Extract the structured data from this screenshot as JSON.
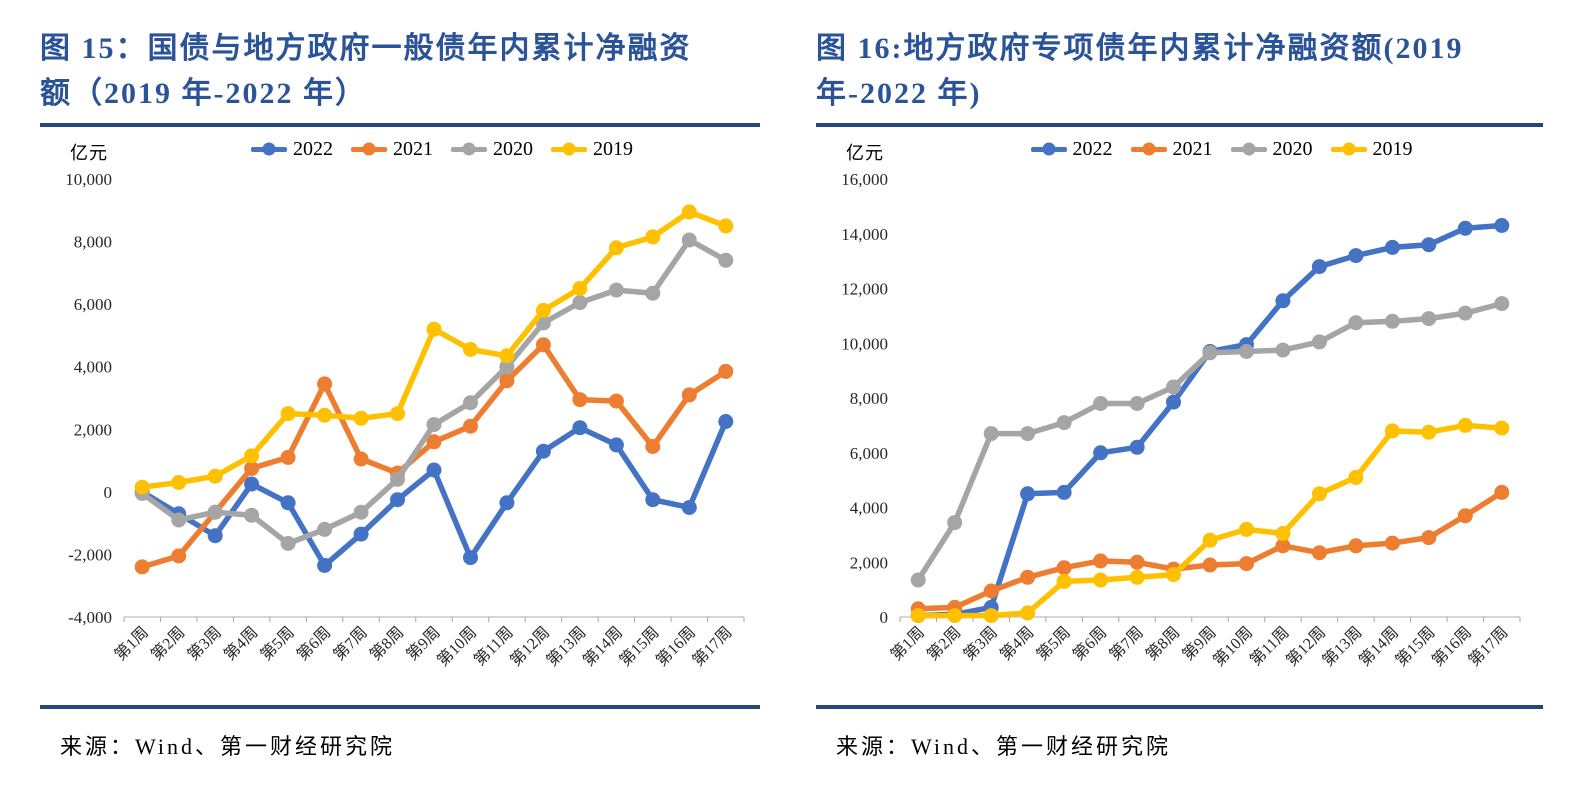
{
  "colors": {
    "title_blue": "#2B5398",
    "rule_navy": "#24477E",
    "axis_gray": "#BFBFBF",
    "series_2022": "#4472C4",
    "series_2021": "#ED7D31",
    "series_2020": "#A5A5A5",
    "series_2019": "#FFC000"
  },
  "panels": [
    {
      "title_lines": [
        "图 15：国债与地方政府一般债年内累计净融资",
        "额（2019 年-2022 年）"
      ],
      "unit": "亿元",
      "source": "来源：Wind、第一财经研究院"
    },
    {
      "title_lines": [
        "图 16:地方政府专项债年内累计净融资额(2019",
        "年-2022 年)"
      ],
      "unit": "亿元",
      "source": "来源：Wind、第一财经研究院"
    }
  ],
  "chart_data": [
    {
      "type": "line",
      "title": "图 15：国债与地方政府一般债年内累计净融资额（2019 年-2022 年）",
      "ylabel": "亿元",
      "xlabel": "",
      "categories": [
        "第1周",
        "第2周",
        "第3周",
        "第4周",
        "第5周",
        "第6周",
        "第7周",
        "第8周",
        "第9周",
        "第10周",
        "第11周",
        "第12周",
        "第13周",
        "第14周",
        "第15周",
        "第16周",
        "第17周"
      ],
      "ylim": [
        -4000,
        10000
      ],
      "ystep": 2000,
      "grid": false,
      "legend_position": "top",
      "series": [
        {
          "name": "2022",
          "color": "#4472C4",
          "values": [
            0,
            -700,
            -1400,
            250,
            -350,
            -2350,
            -1350,
            -250,
            700,
            -2100,
            -350,
            1300,
            2050,
            1500,
            -250,
            -500,
            2250
          ]
        },
        {
          "name": "2021",
          "color": "#ED7D31",
          "values": [
            -2400,
            -2050,
            -650,
            750,
            1100,
            3450,
            1050,
            600,
            1600,
            2100,
            3550,
            4700,
            2950,
            2900,
            1450,
            3100,
            3850
          ]
        },
        {
          "name": "2020",
          "color": "#A5A5A5",
          "values": [
            -50,
            -900,
            -650,
            -750,
            -1650,
            -1200,
            -650,
            400,
            2150,
            2850,
            4000,
            5400,
            6050,
            6450,
            6350,
            8050,
            7400
          ]
        },
        {
          "name": "2019",
          "color": "#FFC000",
          "values": [
            150,
            300,
            500,
            1150,
            2500,
            2450,
            2350,
            2500,
            5200,
            4550,
            4350,
            5800,
            6500,
            7800,
            8150,
            8950,
            8500
          ]
        }
      ]
    },
    {
      "type": "line",
      "title": "图 16:地方政府专项债年内累计净融资额(2019 年-2022 年)",
      "ylabel": "亿元",
      "xlabel": "",
      "categories": [
        "第1周",
        "第2周",
        "第3周",
        "第4周",
        "第5周",
        "第6周",
        "第7周",
        "第8周",
        "第9周",
        "第10周",
        "第11周",
        "第12周",
        "第13周",
        "第14周",
        "第15周",
        "第16周",
        "第17周"
      ],
      "ylim": [
        0,
        16000
      ],
      "ystep": 2000,
      "grid": false,
      "legend_position": "top",
      "series": [
        {
          "name": "2022",
          "color": "#4472C4",
          "values": [
            50,
            100,
            350,
            4500,
            4550,
            6000,
            6200,
            7850,
            9700,
            9950,
            11550,
            12800,
            13200,
            13500,
            13600,
            14200,
            14300
          ]
        },
        {
          "name": "2021",
          "color": "#ED7D31",
          "values": [
            300,
            350,
            950,
            1450,
            1800,
            2050,
            2000,
            1750,
            1900,
            1950,
            2600,
            2350,
            2600,
            2700,
            2900,
            3700,
            4550
          ]
        },
        {
          "name": "2020",
          "color": "#A5A5A5",
          "values": [
            1350,
            3450,
            6700,
            6700,
            7100,
            7800,
            7800,
            8400,
            9650,
            9700,
            9750,
            10050,
            10750,
            10800,
            10900,
            11100,
            11450
          ]
        },
        {
          "name": "2019",
          "color": "#FFC000",
          "values": [
            50,
            50,
            50,
            150,
            1300,
            1350,
            1450,
            1550,
            2800,
            3200,
            3050,
            4500,
            5100,
            6800,
            6750,
            7000,
            6900
          ]
        }
      ]
    }
  ]
}
